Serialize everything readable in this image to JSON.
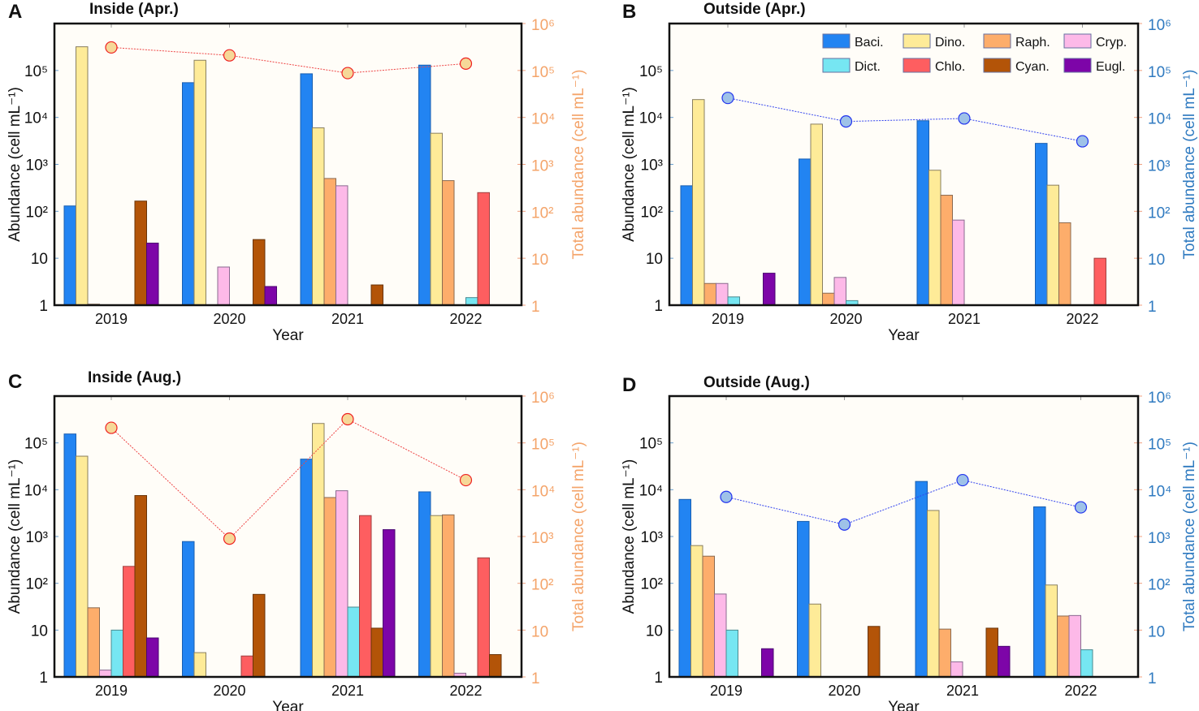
{
  "chart_data": {
    "type": "bar",
    "categories": [
      "2019",
      "2020",
      "2021",
      "2022"
    ],
    "series_names": [
      "Baci.",
      "Dino.",
      "Raph.",
      "Cryp.",
      "Dict.",
      "Chlo.",
      "Cyan.",
      "Eugl."
    ],
    "series_colors": {
      "Baci.": "#2284f2",
      "Dino.": "#feeb98",
      "Raph.": "#fdad6b",
      "Cryp.": "#fdb9e8",
      "Dict.": "#76e6f2",
      "Chlo.": "#fe5e60",
      "Cyan.": "#b35408",
      "Eugl.": "#7d05a8"
    },
    "yscale": "log",
    "ylim": [
      1,
      1000000
    ],
    "ylabel": "Abundance (cell mL⁻¹)",
    "y2label": "Total abundance (cell mL⁻¹)",
    "xlabel": "Year",
    "ytick_labels": [
      "1",
      "10",
      "10²",
      "10³",
      "10⁴",
      "10⁵"
    ],
    "y2tick_labels": [
      "1",
      "10",
      "10²",
      "10³",
      "10⁴",
      "10⁵",
      "10⁶"
    ],
    "legend": {
      "position": "top-right",
      "panel": "B",
      "entries": [
        "Baci.",
        "Dino.",
        "Raph.",
        "Cryp.",
        "Dict.",
        "Chlo.",
        "Cyan.",
        "Eugl."
      ]
    },
    "panels": [
      {
        "letter": "A",
        "title": "Inside (Apr.)",
        "total_color": "#f4a46a",
        "marker_fill": "#f6d898",
        "marker_stroke": "#ee2222",
        "line_color": "#ee4444",
        "series": [
          {
            "name": "Baci.",
            "values": [
              130,
              55000,
              85000,
              130000
            ]
          },
          {
            "name": "Dino.",
            "values": [
              320000,
              165000,
              6000,
              4600
            ]
          },
          {
            "name": "Raph.",
            "values": [
              1.05,
              null,
              500,
              450
            ]
          },
          {
            "name": "Cryp.",
            "values": [
              null,
              6.5,
              350,
              null
            ]
          },
          {
            "name": "Dict.",
            "values": [
              null,
              null,
              null,
              1.45
            ]
          },
          {
            "name": "Chlo.",
            "values": [
              null,
              null,
              null,
              250
            ]
          },
          {
            "name": "Cyan.",
            "values": [
              165,
              25,
              2.7,
              null
            ]
          },
          {
            "name": "Eugl.",
            "values": [
              21,
              2.5,
              null,
              null
            ]
          }
        ],
        "total": [
          310000,
          210000,
          88000,
          140000
        ]
      },
      {
        "letter": "B",
        "title": "Outside (Apr.)",
        "total_color": "#2f7ac0",
        "marker_fill": "#9ec2e8",
        "marker_stroke": "#2233ee",
        "line_color": "#3344ee",
        "series": [
          {
            "name": "Baci.",
            "values": [
              350,
              1300,
              8500,
              2800
            ]
          },
          {
            "name": "Dino.",
            "values": [
              24000,
              7200,
              750,
              360
            ]
          },
          {
            "name": "Raph.",
            "values": [
              2.9,
              1.8,
              220,
              57
            ]
          },
          {
            "name": "Cryp.",
            "values": [
              2.9,
              3.9,
              65,
              null
            ]
          },
          {
            "name": "Dict.",
            "values": [
              1.5,
              1.25,
              null,
              null
            ]
          },
          {
            "name": "Chlo.",
            "values": [
              null,
              null,
              null,
              10
            ]
          },
          {
            "name": "Cyan.",
            "values": [
              null,
              null,
              null,
              null
            ]
          },
          {
            "name": "Eugl.",
            "values": [
              4.8,
              null,
              null,
              null
            ]
          }
        ],
        "total": [
          26000,
          8200,
          9500,
          3100
        ]
      },
      {
        "letter": "C",
        "title": "Inside (Aug.)",
        "total_color": "#f4a46a",
        "marker_fill": "#f6d898",
        "marker_stroke": "#ee2222",
        "line_color": "#ee4444",
        "series": [
          {
            "name": "Baci.",
            "values": [
              155000,
              780,
              45000,
              9000
            ]
          },
          {
            "name": "Dino.",
            "values": [
              52000,
              3.3,
              260000,
              2800
            ]
          },
          {
            "name": "Raph.",
            "values": [
              30,
              null,
              6800,
              2900
            ]
          },
          {
            "name": "Cryp.",
            "values": [
              1.4,
              null,
              9500,
              1.2
            ]
          },
          {
            "name": "Dict.",
            "values": [
              10,
              null,
              31,
              null
            ]
          },
          {
            "name": "Chlo.",
            "values": [
              230,
              2.8,
              2800,
              350
            ]
          },
          {
            "name": "Cyan.",
            "values": [
              7500,
              58,
              11,
              3
            ]
          },
          {
            "name": "Eugl.",
            "values": [
              6.8,
              null,
              1400,
              null
            ]
          }
        ],
        "total": [
          210000,
          900,
          320000,
          16000
        ]
      },
      {
        "letter": "D",
        "title": "Outside (Aug.)",
        "total_color": "#2f7ac0",
        "marker_fill": "#9ec2e8",
        "marker_stroke": "#2233ee",
        "line_color": "#3344ee",
        "series": [
          {
            "name": "Baci.",
            "values": [
              6200,
              2100,
              15000,
              4300
            ]
          },
          {
            "name": "Dino.",
            "values": [
              640,
              36,
              3600,
              92
            ]
          },
          {
            "name": "Raph.",
            "values": [
              380,
              null,
              10.5,
              20
            ]
          },
          {
            "name": "Cryp.",
            "values": [
              59,
              null,
              2.1,
              20.5
            ]
          },
          {
            "name": "Dict.",
            "values": [
              10,
              null,
              null,
              3.8
            ]
          },
          {
            "name": "Chlo.",
            "values": [
              null,
              null,
              null,
              null
            ]
          },
          {
            "name": "Cyan.",
            "values": [
              null,
              12,
              11,
              null
            ]
          },
          {
            "name": "Eugl.",
            "values": [
              4,
              null,
              4.5,
              null
            ]
          }
        ],
        "total": [
          7000,
          1800,
          16000,
          4200
        ]
      }
    ]
  }
}
